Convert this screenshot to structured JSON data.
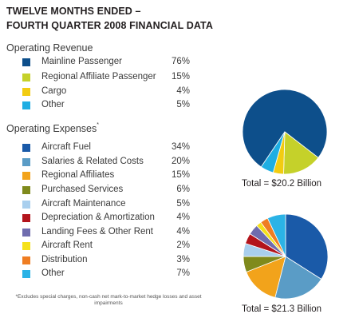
{
  "title_line1": "TWELVE MONTHS ENDED –",
  "title_line2": "FOURTH QUARTER 2008 FINANCIAL DATA",
  "footnote": "*Excludes special charges, non-cash net mark-to-market hedge losses and asset impairments",
  "chart_data": [
    {
      "type": "pie",
      "title": "Operating Revenue",
      "total_label": "Total = $20.2 Billion",
      "categories": [
        "Mainline Passenger",
        "Regional Affiliate Passenger",
        "Cargo",
        "Other"
      ],
      "values": [
        76,
        15,
        4,
        5
      ],
      "labels": [
        "76%",
        "15%",
        "4%",
        "5%"
      ],
      "colors": [
        "#0d4f8b",
        "#c5d12a",
        "#f2cc11",
        "#1eaee3"
      ],
      "start_angle_deg": 214
    },
    {
      "type": "pie",
      "title": "Operating Expenses",
      "title_mark": "*",
      "total_label": "Total = $21.3 Billion",
      "categories": [
        "Aircraft Fuel",
        "Salaries & Related Costs",
        "Regional Affiliates",
        "Purchased Services",
        "Aircraft Maintenance",
        "Depreciation & Amortization",
        "Landing Fees & Other Rent",
        "Aircraft Rent",
        "Distribution",
        "Other"
      ],
      "values": [
        34,
        20,
        15,
        6,
        5,
        4,
        4,
        2,
        3,
        7
      ],
      "labels": [
        "34%",
        "20%",
        "15%",
        "6%",
        "5%",
        "4%",
        "4%",
        "2%",
        "3%",
        "7%"
      ],
      "colors": [
        "#1a5aa8",
        "#5a9cc6",
        "#f2a31b",
        "#7f8a1c",
        "#a9cfee",
        "#b3141c",
        "#6f6cae",
        "#f5e11a",
        "#ef7d22",
        "#2bb3e6"
      ],
      "start_angle_deg": 0
    }
  ]
}
